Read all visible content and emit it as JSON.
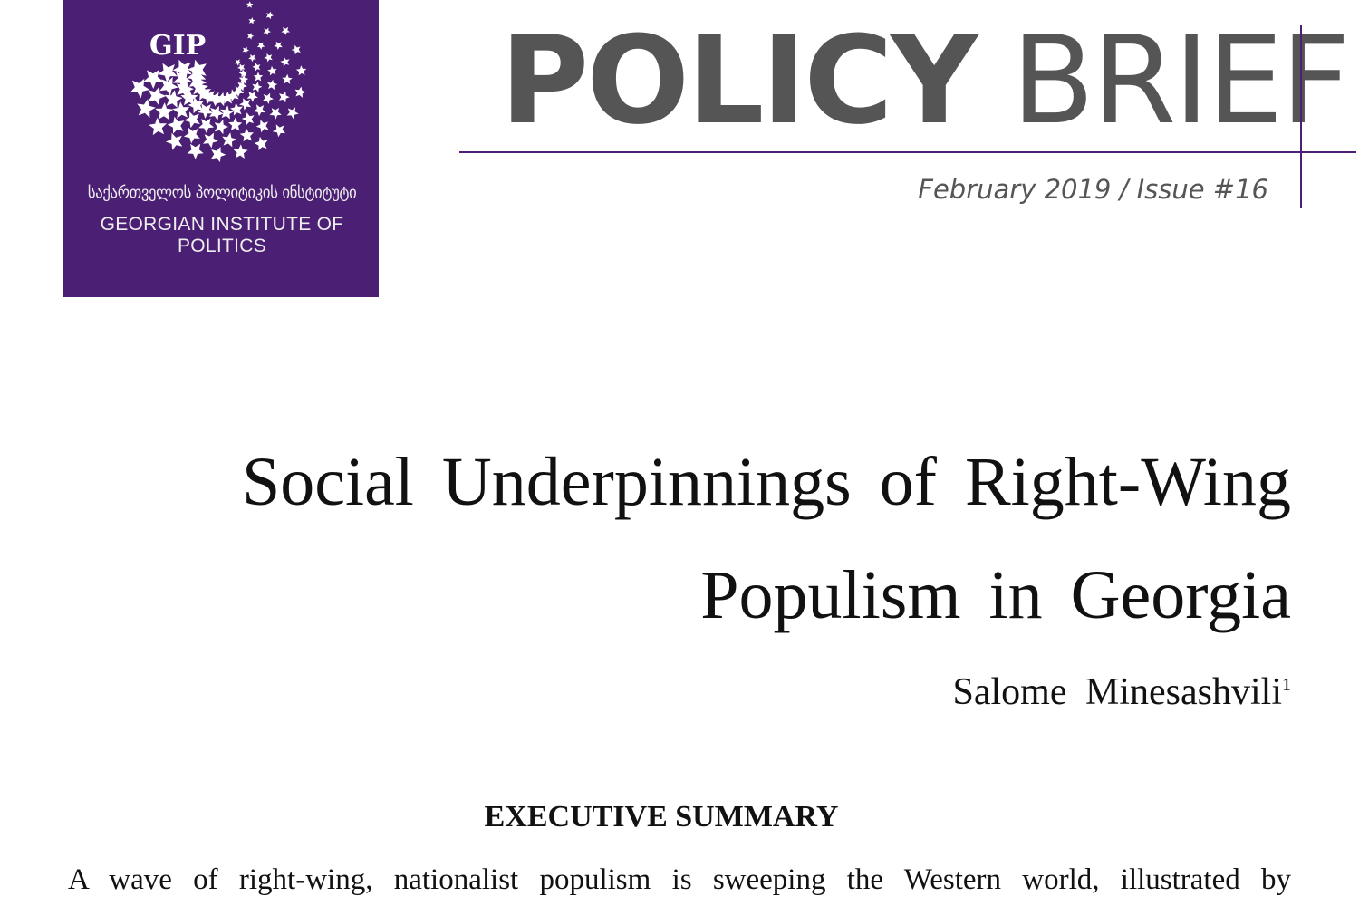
{
  "logo": {
    "abbrev": "GIP",
    "georgian_name": "საქართველოს პოლიტიკის ინსტიტუტი",
    "english_name": "GEORGIAN INSTITUTE OF POLITICS",
    "color": "#4b1f74",
    "icon": "star-globe-icon"
  },
  "header": {
    "policy": "POLICY",
    "brief": "BRIEF",
    "date_issue": "February 2019 / Issue #16"
  },
  "document": {
    "title_line1": "Social Underpinnings of Right-Wing",
    "title_line2": "Populism in Georgia",
    "author": "Salome Minesashvili",
    "footnote_mark": "1",
    "section_heading": "EXECUTIVE SUMMARY",
    "body_first_line": "A wave of right-wing, nationalist populism is sweeping the Western world, illustrated by"
  }
}
